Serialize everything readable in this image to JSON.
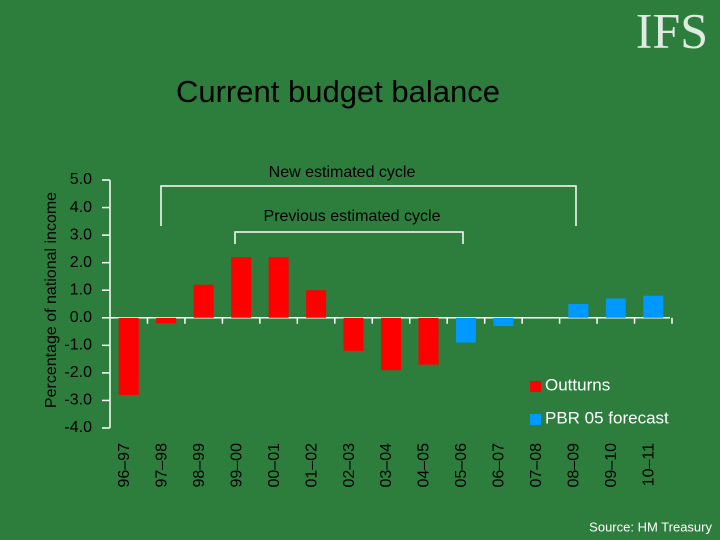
{
  "logo": "IFS",
  "source": "Source: HM Treasury",
  "chart_data": {
    "type": "bar",
    "title": "Current budget balance",
    "ylabel": "Percentage of national income",
    "annotations": [
      "New estimated cycle",
      "Previous estimated cycle"
    ],
    "categories": [
      "96–97",
      "97–98",
      "98–99",
      "99–00",
      "00–01",
      "01–02",
      "02–03",
      "03–04",
      "04–05",
      "05–06",
      "06–07",
      "07–08",
      "08–09",
      "09–10",
      "10–11"
    ],
    "series": [
      {
        "name": "Outturns",
        "color": "#ff0000",
        "values": [
          -2.8,
          -0.2,
          1.2,
          2.2,
          2.2,
          1.0,
          -1.2,
          -1.9,
          -1.7,
          null,
          null,
          null,
          null,
          null,
          null
        ]
      },
      {
        "name": "PBR 05 forecast",
        "color": "#0099ff",
        "values": [
          null,
          null,
          null,
          null,
          null,
          null,
          null,
          null,
          null,
          -0.9,
          -0.3,
          0.0,
          0.5,
          0.7,
          0.8
        ]
      }
    ],
    "ylim": [
      -4,
      5
    ],
    "yticks": [
      {
        "value": -4,
        "label": "-4.0"
      },
      {
        "value": -3,
        "label": "-3.0"
      },
      {
        "value": -2,
        "label": "-2.0"
      },
      {
        "value": -1,
        "label": "-1.0"
      },
      {
        "value": 0,
        "label": "0.0"
      },
      {
        "value": 1,
        "label": "1.0"
      },
      {
        "value": 2,
        "label": "2.0"
      },
      {
        "value": 3,
        "label": "3.0"
      },
      {
        "value": 4,
        "label": "4.0"
      },
      {
        "value": 5,
        "label": "5.0"
      }
    ],
    "legend": "lower-right"
  }
}
